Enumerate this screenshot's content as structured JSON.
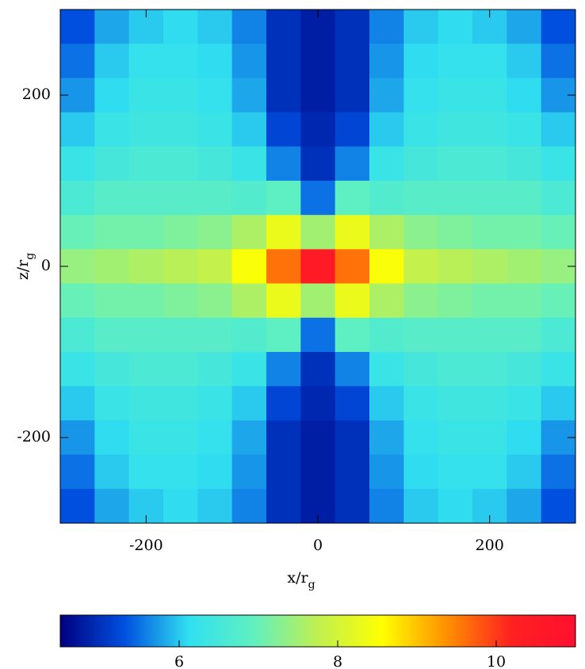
{
  "chart_data": {
    "type": "heatmap",
    "x_label": {
      "text": "x/r",
      "sub": "g"
    },
    "y_label": {
      "text": "z/r",
      "sub": "g"
    },
    "x": [
      -280,
      -240,
      -200,
      -160,
      -120,
      -80,
      -40,
      0,
      40,
      80,
      120,
      160,
      200,
      240,
      280
    ],
    "y": [
      280,
      240,
      200,
      160,
      120,
      80,
      40,
      0,
      -40,
      -80,
      -120,
      -160,
      -200,
      -240,
      -280
    ],
    "values": [
      [
        5.3,
        5.8,
        6.0,
        6.1,
        6.0,
        5.6,
        5.0,
        4.8,
        5.0,
        5.6,
        6.0,
        6.1,
        6.0,
        5.8,
        5.3
      ],
      [
        5.5,
        6.0,
        6.2,
        6.2,
        6.1,
        5.7,
        5.0,
        4.8,
        5.0,
        5.7,
        6.1,
        6.2,
        6.2,
        6.0,
        5.5
      ],
      [
        5.7,
        6.1,
        6.3,
        6.3,
        6.2,
        5.8,
        5.0,
        4.8,
        5.0,
        5.8,
        6.2,
        6.3,
        6.3,
        6.1,
        5.7
      ],
      [
        6.0,
        6.3,
        6.4,
        6.4,
        6.3,
        6.0,
        5.2,
        4.9,
        5.2,
        6.0,
        6.3,
        6.4,
        6.4,
        6.3,
        6.0
      ],
      [
        6.3,
        6.5,
        6.6,
        6.6,
        6.5,
        6.3,
        5.6,
        5.0,
        5.6,
        6.3,
        6.5,
        6.6,
        6.6,
        6.5,
        6.3
      ],
      [
        6.6,
        6.8,
        6.8,
        6.8,
        6.8,
        6.7,
        6.9,
        5.5,
        6.9,
        6.7,
        6.8,
        6.8,
        6.8,
        6.8,
        6.6
      ],
      [
        7.0,
        7.1,
        7.1,
        7.2,
        7.3,
        7.6,
        8.3,
        7.5,
        8.3,
        7.6,
        7.3,
        7.2,
        7.1,
        7.1,
        7.0
      ],
      [
        7.4,
        7.5,
        7.6,
        7.7,
        7.8,
        8.5,
        9.6,
        10.5,
        9.6,
        8.5,
        7.8,
        7.7,
        7.6,
        7.5,
        7.4
      ],
      [
        7.0,
        7.1,
        7.1,
        7.2,
        7.3,
        7.6,
        8.3,
        7.5,
        8.3,
        7.6,
        7.3,
        7.2,
        7.1,
        7.1,
        7.0
      ],
      [
        6.6,
        6.8,
        6.8,
        6.8,
        6.8,
        6.7,
        6.9,
        5.5,
        6.9,
        6.7,
        6.8,
        6.8,
        6.8,
        6.8,
        6.6
      ],
      [
        6.3,
        6.5,
        6.6,
        6.6,
        6.5,
        6.3,
        5.6,
        5.0,
        5.6,
        6.3,
        6.5,
        6.6,
        6.6,
        6.5,
        6.3
      ],
      [
        6.0,
        6.3,
        6.4,
        6.4,
        6.3,
        6.0,
        5.2,
        4.9,
        5.2,
        6.0,
        6.3,
        6.4,
        6.4,
        6.3,
        6.0
      ],
      [
        5.7,
        6.1,
        6.3,
        6.3,
        6.2,
        5.8,
        5.0,
        4.8,
        5.0,
        5.8,
        6.2,
        6.3,
        6.3,
        6.1,
        5.7
      ],
      [
        5.5,
        6.0,
        6.2,
        6.2,
        6.1,
        5.7,
        5.0,
        4.8,
        5.0,
        5.7,
        6.1,
        6.2,
        6.2,
        6.0,
        5.5
      ],
      [
        5.3,
        5.8,
        6.0,
        6.1,
        6.0,
        5.6,
        5.0,
        4.8,
        5.0,
        5.6,
        6.0,
        6.1,
        6.0,
        5.8,
        5.3
      ]
    ],
    "cell_size": 40,
    "xlim": [
      -300,
      300
    ],
    "ylim": [
      -300,
      300
    ],
    "xticks": [
      -200,
      0,
      200
    ],
    "yticks": [
      -200,
      0,
      200
    ],
    "clim": [
      4.5,
      11
    ],
    "cticks": [
      6,
      8,
      10
    ],
    "colorscale": [
      "#000080",
      "#0050e0",
      "#30e0f0",
      "#60f0c0",
      "#c0f050",
      "#ffff00",
      "#ff9000",
      "#ff2020",
      "#ff1030"
    ]
  }
}
